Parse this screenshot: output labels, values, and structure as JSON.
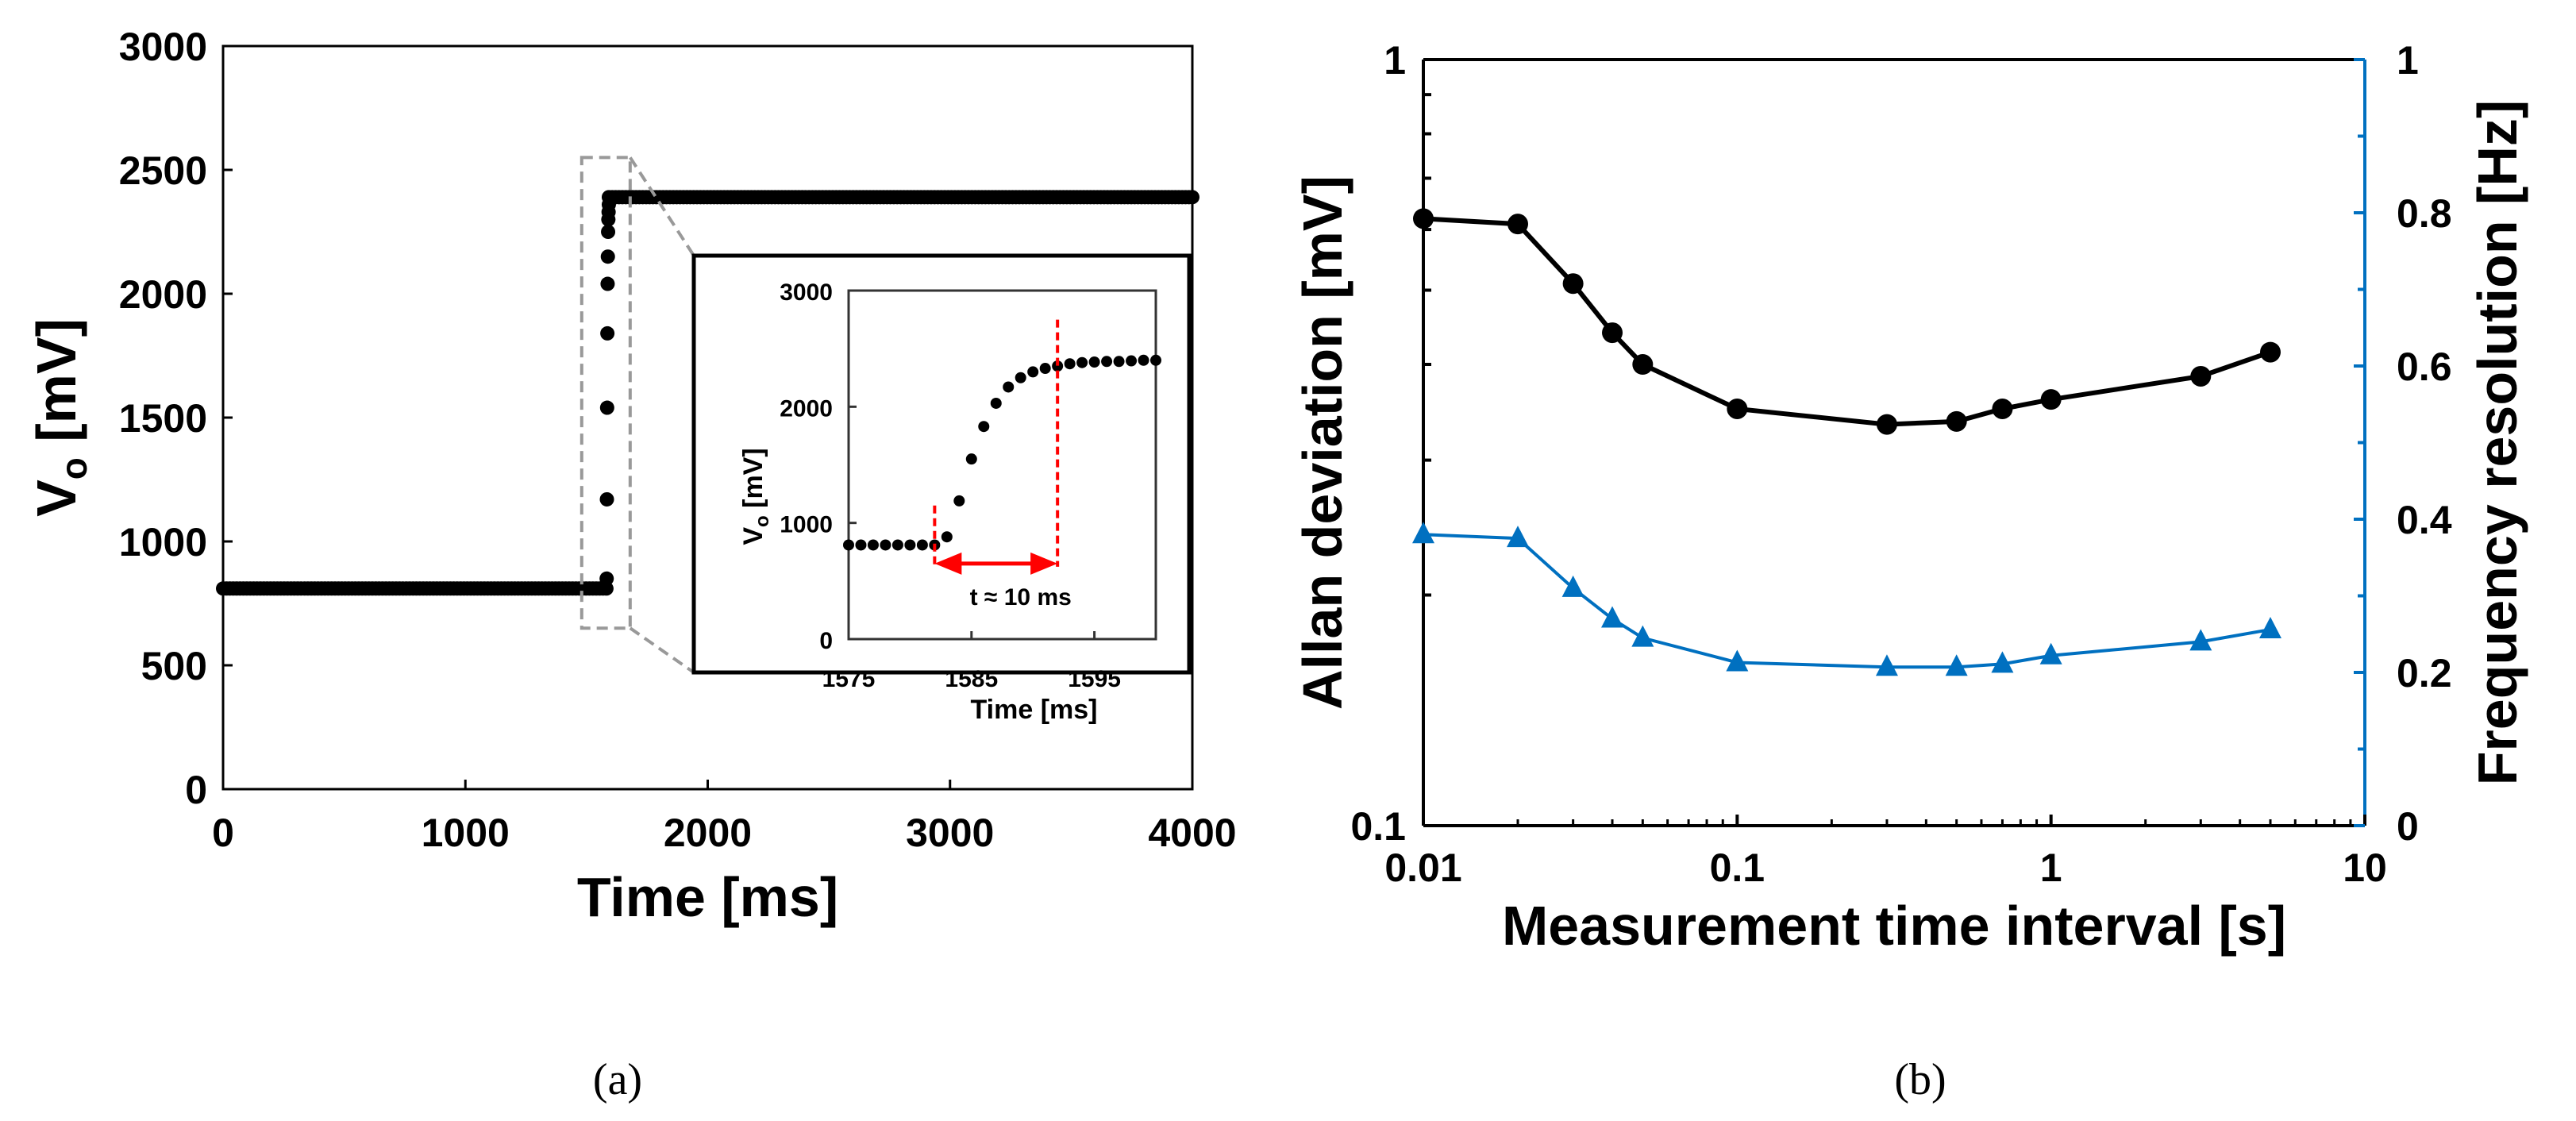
{
  "chart_data": [
    {
      "id": "a",
      "type": "scatter",
      "caption": "(a)",
      "xlabel": "Time [ms]",
      "ylabel_main": "V",
      "ylabel_sub": "o",
      "ylabel_unit": " [mV]",
      "xlim": [
        0,
        4000
      ],
      "ylim": [
        0,
        3000
      ],
      "xticks": [
        0,
        1000,
        2000,
        3000,
        4000
      ],
      "yticks": [
        0,
        500,
        1000,
        1500,
        2000,
        2500,
        3000
      ],
      "low_level": {
        "x_range": [
          0,
          1582
        ],
        "value": 810
      },
      "high_level": {
        "x_range": [
          1592,
          4000
        ],
        "value": 2390
      },
      "transition_points": [
        [
          1583,
          850
        ],
        [
          1584,
          1170
        ],
        [
          1585,
          1540
        ],
        [
          1586,
          1840
        ],
        [
          1587,
          2040
        ],
        [
          1588,
          2150
        ],
        [
          1589,
          2250
        ],
        [
          1590,
          2300
        ],
        [
          1591,
          2330
        ],
        [
          1592,
          2360
        ]
      ],
      "zoom_box": {
        "x": [
          1480,
          1680
        ],
        "y": [
          650,
          2550
        ]
      },
      "inset": {
        "xlabel": "Time [ms]",
        "ylabel_main": "V",
        "ylabel_sub": "o",
        "ylabel_unit": " [mV]",
        "xlim": [
          1575,
          1600
        ],
        "ylim": [
          0,
          3000
        ],
        "xticks": [
          1575,
          1585,
          1595
        ],
        "yticks": [
          0,
          1000,
          2000,
          3000
        ],
        "points": [
          [
            1575,
            810
          ],
          [
            1576,
            810
          ],
          [
            1577,
            810
          ],
          [
            1578,
            810
          ],
          [
            1579,
            810
          ],
          [
            1580,
            810
          ],
          [
            1581,
            810
          ],
          [
            1582,
            810
          ],
          [
            1583,
            880
          ],
          [
            1584,
            1190
          ],
          [
            1585,
            1550
          ],
          [
            1586,
            1830
          ],
          [
            1587,
            2030
          ],
          [
            1588,
            2170
          ],
          [
            1589,
            2250
          ],
          [
            1590,
            2300
          ],
          [
            1591,
            2330
          ],
          [
            1592,
            2350
          ],
          [
            1593,
            2370
          ],
          [
            1594,
            2380
          ],
          [
            1595,
            2385
          ],
          [
            1596,
            2390
          ],
          [
            1597,
            2390
          ],
          [
            1598,
            2395
          ],
          [
            1599,
            2400
          ],
          [
            1600,
            2400
          ]
        ],
        "markers": [
          1582,
          1592
        ],
        "arrow_y": 650,
        "annotation": "t ≈ 10 ms",
        "annotation_color": "#ff0000"
      }
    },
    {
      "id": "b",
      "type": "line",
      "caption": "(b)",
      "xlabel": "Measurement time interval [s]",
      "ylabel_left": "Allan deviation [mV]",
      "ylabel_right": "Frequency resolution [Hz]",
      "xscale": "log",
      "xlim": [
        0.01,
        10
      ],
      "xticks": [
        "0.01",
        "0.1",
        "1",
        "10"
      ],
      "ylim_left": [
        0.1,
        1
      ],
      "yscale_left": "log",
      "yticks_left": [
        "0.1",
        "1"
      ],
      "ylim_right": [
        0,
        1
      ],
      "yticks_right": [
        "0",
        "0.2",
        "0.4",
        "0.6",
        "0.8",
        "1"
      ],
      "right_axis_color": "#0070c0",
      "x": [
        0.01,
        0.02,
        0.03,
        0.04,
        0.05,
        0.1,
        0.3,
        0.5,
        0.7,
        1,
        3,
        5
      ],
      "series": [
        {
          "name": "Allan deviation",
          "axis": "left",
          "marker": "circle",
          "color": "#000000",
          "values": [
            0.62,
            0.61,
            0.51,
            0.44,
            0.4,
            0.35,
            0.334,
            0.337,
            0.35,
            0.36,
            0.386,
            0.415
          ]
        },
        {
          "name": "Frequency resolution",
          "axis": "right",
          "marker": "triangle",
          "color": "#0070c0",
          "values": [
            0.38,
            0.375,
            0.31,
            0.27,
            0.245,
            0.213,
            0.207,
            0.207,
            0.211,
            0.222,
            0.24,
            0.256
          ]
        }
      ]
    }
  ]
}
